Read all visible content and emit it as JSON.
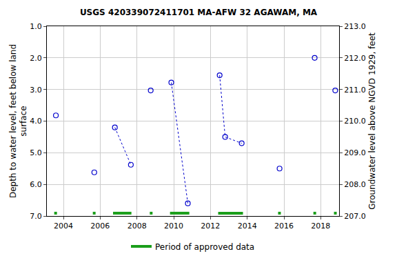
{
  "chart_data": {
    "type": "scatter",
    "title": "USGS 420339072411701 MA-AFW 32 AGAWAM, MA",
    "ylabel": "Depth to water level, feet below land\nsurface",
    "y2label": "Groundwater level above NGVD 1929, feet",
    "x": [
      2003.59,
      null,
      2005.68,
      null,
      2006.8,
      2007.67,
      null,
      2008.75,
      null,
      2009.87,
      2010.77,
      null,
      2012.5,
      2012.8,
      2013.7,
      null,
      2015.76,
      null,
      2017.67,
      null,
      2018.79
    ],
    "values": [
      3.82,
      null,
      5.62,
      null,
      4.2,
      5.38,
      null,
      3.03,
      null,
      2.78,
      6.6,
      null,
      2.55,
      4.5,
      4.7,
      null,
      5.5,
      null,
      2.0,
      null,
      3.03
    ],
    "color": "#0000cc",
    "marker": "circle-open",
    "line_style": "dot",
    "xlim": [
      2003.1,
      2019.0
    ],
    "xticks": [
      2004,
      2006,
      2008,
      2010,
      2012,
      2014,
      2016,
      2018
    ],
    "ylim": [
      7.0,
      1.0
    ],
    "yticks": [
      {
        "value": 1,
        "label": "1.0"
      },
      {
        "value": 2,
        "label": "2.0"
      },
      {
        "value": 3,
        "label": "3.0"
      },
      {
        "value": 4,
        "label": "4.0"
      },
      {
        "value": 5,
        "label": "5.0"
      },
      {
        "value": 6,
        "label": "6.0"
      },
      {
        "value": 7,
        "label": "7.0"
      }
    ],
    "y2lim": [
      207.0,
      213.0
    ],
    "y2ticks": [
      {
        "value": 207,
        "label": "207.0"
      },
      {
        "value": 208,
        "label": "208.0"
      },
      {
        "value": 209,
        "label": "209.0"
      },
      {
        "value": 210,
        "label": "210.0"
      },
      {
        "value": 211,
        "label": "211.0"
      },
      {
        "value": 212,
        "label": "212.0"
      },
      {
        "value": 213,
        "label": "213.0"
      }
    ],
    "grid": true,
    "legend": "bottom",
    "approved_periods": {
      "name": "Period of approved data",
      "color": "#1a9e1a",
      "periods": [
        [
          2003.5,
          2003.65
        ],
        [
          2005.6,
          2005.75
        ],
        [
          2006.7,
          2007.7
        ],
        [
          2008.7,
          2008.85
        ],
        [
          2009.8,
          2010.85
        ],
        [
          2012.42,
          2013.77
        ],
        [
          2015.68,
          2015.83
        ],
        [
          2017.6,
          2017.75
        ],
        [
          2018.72,
          2018.87
        ]
      ]
    }
  }
}
